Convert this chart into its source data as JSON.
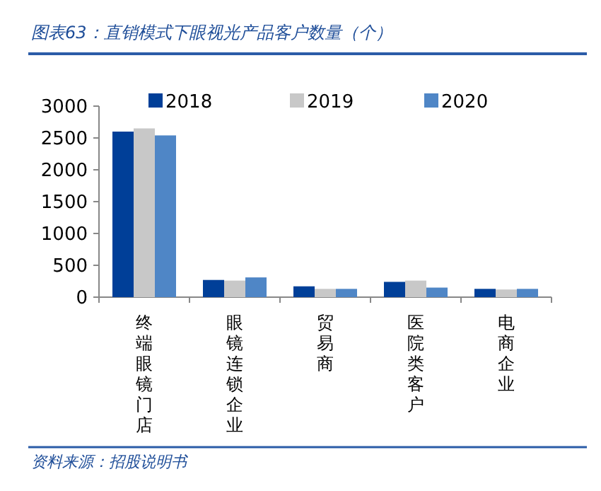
{
  "chart_data": {
    "type": "bar",
    "title": "图表63：直销模式下眼视光产品客户数量（个）",
    "categories": [
      "终端眼镜门店",
      "眼镜连锁企业",
      "贸易商",
      "医院类客户",
      "电商企业"
    ],
    "series": [
      {
        "name": "2018",
        "color": "#003f98",
        "values": [
          2600,
          270,
          170,
          240,
          130
        ]
      },
      {
        "name": "2019",
        "color": "#c8c8c8",
        "values": [
          2650,
          260,
          130,
          260,
          120
        ]
      },
      {
        "name": "2020",
        "color": "#4f86c6",
        "values": [
          2540,
          310,
          130,
          150,
          130
        ]
      }
    ],
    "ylim": [
      0,
      3000
    ],
    "yticks": [
      0,
      500,
      1000,
      1500,
      2000,
      2500,
      3000
    ],
    "legend": "top",
    "grid": false,
    "annotations": [
      "资料来源：招股说明书"
    ]
  }
}
